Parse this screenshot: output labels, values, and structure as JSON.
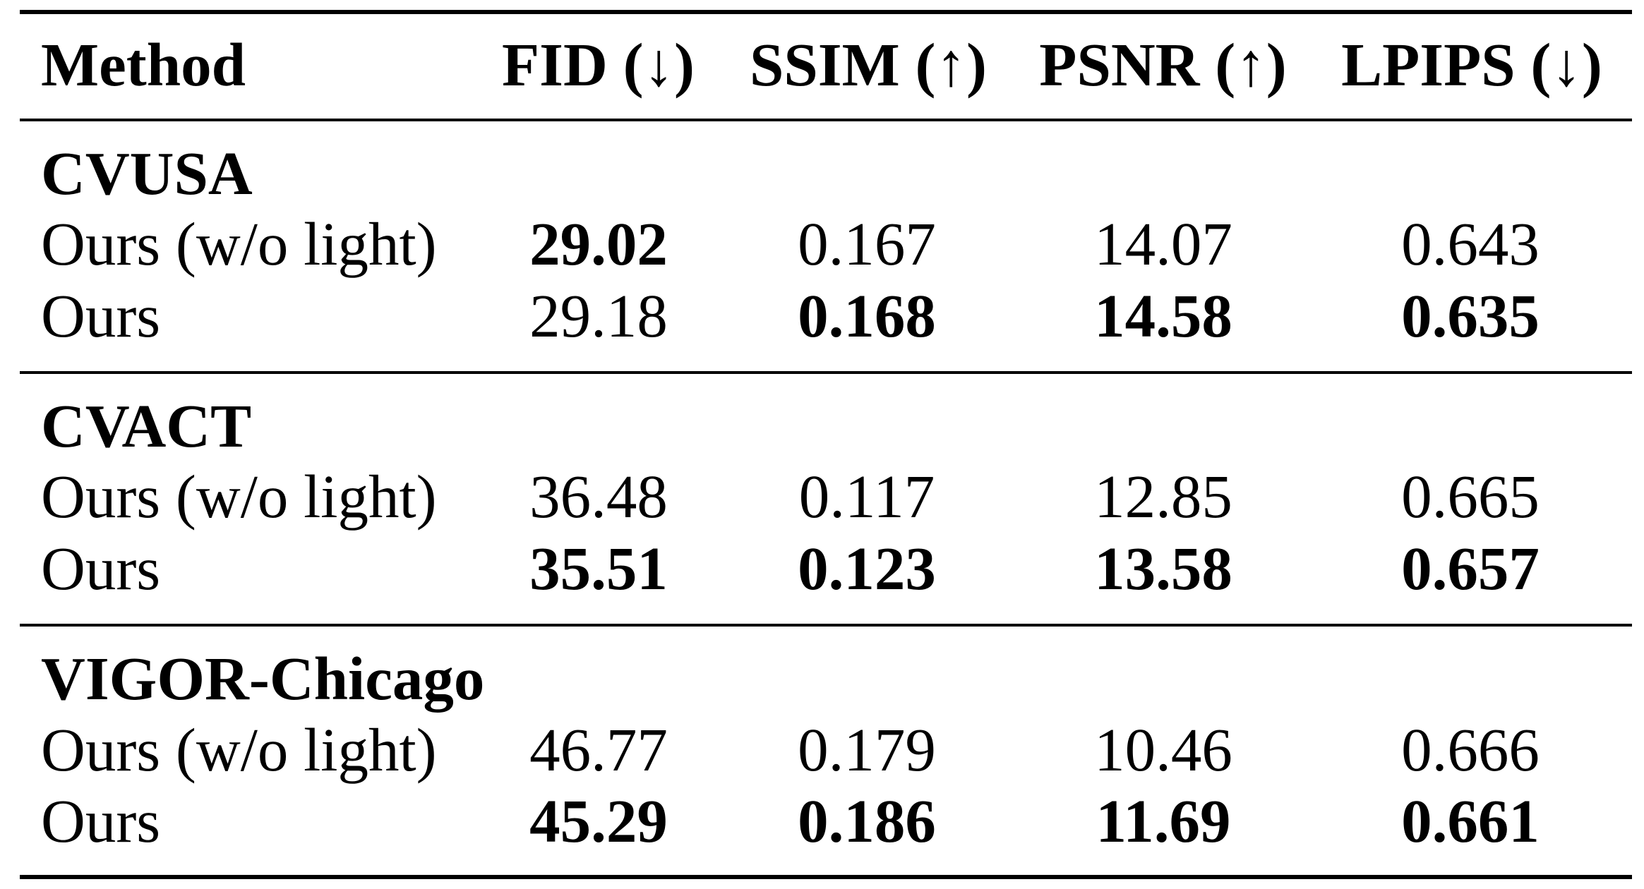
{
  "table": {
    "columns": [
      "Method",
      "FID (↓)",
      "SSIM (↑)",
      "PSNR (↑)",
      "LPIPS (↓)"
    ],
    "groups": [
      {
        "name": "CVUSA",
        "rows": [
          {
            "method": "Ours (w/o light)",
            "fid": "29.02",
            "ssim": "0.167",
            "psnr": "14.07",
            "lpips": "0.643"
          },
          {
            "method": "Ours",
            "fid": "29.18",
            "ssim": "0.168",
            "psnr": "14.58",
            "lpips": "0.635"
          }
        ]
      },
      {
        "name": "CVACT",
        "rows": [
          {
            "method": "Ours (w/o light)",
            "fid": "36.48",
            "ssim": "0.117",
            "psnr": "12.85",
            "lpips": "0.665"
          },
          {
            "method": "Ours",
            "fid": "35.51",
            "ssim": "0.123",
            "psnr": "13.58",
            "lpips": "0.657"
          }
        ]
      },
      {
        "name": "VIGOR-Chicago",
        "rows": [
          {
            "method": "Ours (w/o light)",
            "fid": "46.77",
            "ssim": "0.179",
            "psnr": "10.46",
            "lpips": "0.666"
          },
          {
            "method": "Ours",
            "fid": "45.29",
            "ssim": "0.186",
            "psnr": "11.69",
            "lpips": "0.661"
          }
        ]
      }
    ],
    "best_values_bold": {
      "CVUSA": [
        "fid_row0",
        "ssim_row1",
        "psnr_row1",
        "lpips_row1"
      ],
      "CVACT": [
        "fid_row1",
        "ssim_row1",
        "psnr_row1",
        "lpips_row1"
      ],
      "VIGOR-Chicago": [
        "fid_row1",
        "ssim_row1",
        "psnr_row1",
        "lpips_row1"
      ]
    }
  }
}
